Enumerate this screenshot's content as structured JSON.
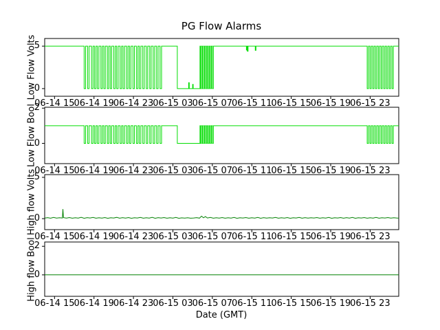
{
  "title": "PG Flow Alarms",
  "xlabel": "Date (GMT)",
  "xlim": [
    2.0,
    37.9
  ],
  "x_tick_values": [
    3,
    7,
    11,
    15,
    19,
    23,
    27,
    31,
    35
  ],
  "x_tick_labels": [
    "06-14 15",
    "06-14 19",
    "06-14 23",
    "06-15 03",
    "06-15 07",
    "06-15 11",
    "06-15 15",
    "06-15 19",
    "06-15 23"
  ],
  "colors": {
    "bright_green": "#00dd00",
    "dark_green": "#008000",
    "axis": "#000000",
    "background": "#ffffff"
  },
  "chart_data": [
    {
      "type": "line",
      "ylabel": "Low Flow Volts",
      "ylim": [
        -0.9,
        5.9
      ],
      "yticks": [
        0,
        5
      ],
      "series": [
        {
          "name": "low-flow-volts",
          "color": "#00dd00",
          "style": "pulse",
          "base": 5,
          "pulses": [
            [
              6.0,
              6.15,
              0
            ],
            [
              6.35,
              6.5,
              0
            ],
            [
              6.75,
              6.9,
              0
            ],
            [
              7.05,
              7.2,
              0
            ],
            [
              7.35,
              7.5,
              0
            ],
            [
              7.7,
              7.85,
              0
            ],
            [
              8.0,
              8.15,
              0
            ],
            [
              8.35,
              8.5,
              0
            ],
            [
              8.65,
              8.8,
              0
            ],
            [
              9.0,
              9.15,
              0
            ],
            [
              9.3,
              9.45,
              0
            ],
            [
              9.65,
              9.8,
              0
            ],
            [
              9.95,
              10.1,
              0
            ],
            [
              10.3,
              10.45,
              0
            ],
            [
              10.6,
              10.75,
              0
            ],
            [
              10.95,
              11.1,
              0
            ],
            [
              11.3,
              11.45,
              0
            ],
            [
              11.6,
              11.75,
              0
            ],
            [
              11.95,
              12.1,
              0
            ],
            [
              12.3,
              12.45,
              0
            ],
            [
              12.65,
              12.8,
              0
            ],
            [
              13.0,
              13.15,
              0
            ],
            [
              13.35,
              13.5,
              0
            ],
            [
              13.7,
              13.85,
              0
            ],
            [
              15.45,
              16.6,
              0
            ],
            [
              16.6,
              16.66,
              0.7
            ],
            [
              16.66,
              17.0,
              0
            ],
            [
              17.0,
              17.06,
              0.5
            ],
            [
              17.06,
              17.75,
              0
            ],
            [
              17.8,
              17.9,
              0
            ],
            [
              18.0,
              18.1,
              0
            ],
            [
              18.2,
              18.3,
              0
            ],
            [
              18.4,
              18.5,
              0
            ],
            [
              18.6,
              18.7,
              0
            ],
            [
              18.8,
              18.9,
              0
            ],
            [
              19.0,
              19.1,
              0
            ],
            [
              22.45,
              22.5,
              4.55
            ],
            [
              22.55,
              22.62,
              4.4
            ],
            [
              23.35,
              23.42,
              4.5
            ],
            [
              34.7,
              34.83,
              0
            ],
            [
              34.98,
              35.11,
              0
            ],
            [
              35.26,
              35.39,
              0
            ],
            [
              35.54,
              35.67,
              0
            ],
            [
              35.82,
              35.95,
              0
            ],
            [
              36.1,
              36.23,
              0
            ],
            [
              36.38,
              36.51,
              0
            ],
            [
              36.66,
              36.79,
              0
            ],
            [
              36.94,
              37.07,
              0
            ],
            [
              37.22,
              37.35,
              0
            ]
          ]
        }
      ]
    },
    {
      "type": "line",
      "ylabel": "Low Flow Bool",
      "ylim": [
        -1.15,
        2.05
      ],
      "yticks": [
        0,
        2
      ],
      "series": [
        {
          "name": "low-flow-bool",
          "color": "#00dd00",
          "style": "pulse",
          "base": 1,
          "pulses": [
            [
              6.0,
              6.15,
              0
            ],
            [
              6.35,
              6.5,
              0
            ],
            [
              6.75,
              6.9,
              0
            ],
            [
              7.05,
              7.2,
              0
            ],
            [
              7.35,
              7.5,
              0
            ],
            [
              7.7,
              7.85,
              0
            ],
            [
              8.0,
              8.15,
              0
            ],
            [
              8.35,
              8.5,
              0
            ],
            [
              8.65,
              8.8,
              0
            ],
            [
              9.0,
              9.15,
              0
            ],
            [
              9.3,
              9.45,
              0
            ],
            [
              9.65,
              9.8,
              0
            ],
            [
              9.95,
              10.1,
              0
            ],
            [
              10.3,
              10.45,
              0
            ],
            [
              10.6,
              10.75,
              0
            ],
            [
              10.95,
              11.1,
              0
            ],
            [
              11.3,
              11.45,
              0
            ],
            [
              11.6,
              11.75,
              0
            ],
            [
              11.95,
              12.1,
              0
            ],
            [
              12.3,
              12.45,
              0
            ],
            [
              12.65,
              12.8,
              0
            ],
            [
              13.0,
              13.15,
              0
            ],
            [
              13.35,
              13.5,
              0
            ],
            [
              13.7,
              13.85,
              0
            ],
            [
              15.45,
              17.75,
              0
            ],
            [
              17.8,
              17.9,
              0
            ],
            [
              18.0,
              18.1,
              0
            ],
            [
              18.2,
              18.3,
              0
            ],
            [
              18.4,
              18.5,
              0
            ],
            [
              18.6,
              18.7,
              0
            ],
            [
              18.8,
              18.9,
              0
            ],
            [
              19.0,
              19.1,
              0
            ],
            [
              34.7,
              34.83,
              0
            ],
            [
              34.98,
              35.11,
              0
            ],
            [
              35.26,
              35.39,
              0
            ],
            [
              35.54,
              35.67,
              0
            ],
            [
              35.82,
              35.95,
              0
            ],
            [
              36.1,
              36.23,
              0
            ],
            [
              36.38,
              36.51,
              0
            ],
            [
              36.66,
              36.79,
              0
            ],
            [
              36.94,
              37.07,
              0
            ],
            [
              37.22,
              37.35,
              0
            ]
          ]
        }
      ]
    },
    {
      "type": "line",
      "ylabel": "High flow Volts",
      "ylim": [
        -1.33,
        5.33
      ],
      "yticks": [
        0,
        5
      ],
      "series": [
        {
          "name": "high-flow-volts",
          "color": "#008000",
          "style": "points",
          "points": [
            [
              2.0,
              0.06
            ],
            [
              2.3,
              0.12
            ],
            [
              2.6,
              0.05
            ],
            [
              2.9,
              0.14
            ],
            [
              3.2,
              0.07
            ],
            [
              3.5,
              0.1
            ],
            [
              3.8,
              0.08
            ],
            [
              3.85,
              1.15
            ],
            [
              3.9,
              0.12
            ],
            [
              4.2,
              0.06
            ],
            [
              4.5,
              0.13
            ],
            [
              4.8,
              0.05
            ],
            [
              5.1,
              0.11
            ],
            [
              5.4,
              0.07
            ],
            [
              5.7,
              0.15
            ],
            [
              6.0,
              0.04
            ],
            [
              6.3,
              0.12
            ],
            [
              6.6,
              0.08
            ],
            [
              6.9,
              0.14
            ],
            [
              7.2,
              0.05
            ],
            [
              7.5,
              0.1
            ],
            [
              7.8,
              0.07
            ],
            [
              8.1,
              0.13
            ],
            [
              8.4,
              0.04
            ],
            [
              8.7,
              0.11
            ],
            [
              9.0,
              0.08
            ],
            [
              9.3,
              0.15
            ],
            [
              9.6,
              0.05
            ],
            [
              9.9,
              0.12
            ],
            [
              10.2,
              0.07
            ],
            [
              10.5,
              0.13
            ],
            [
              10.8,
              0.04
            ],
            [
              11.1,
              0.1
            ],
            [
              11.4,
              0.08
            ],
            [
              11.7,
              0.14
            ],
            [
              12.0,
              0.05
            ],
            [
              12.3,
              0.11
            ],
            [
              12.6,
              0.07
            ],
            [
              12.9,
              0.15
            ],
            [
              13.2,
              0.04
            ],
            [
              13.5,
              0.12
            ],
            [
              13.8,
              0.08
            ],
            [
              14.1,
              0.13
            ],
            [
              14.4,
              0.05
            ],
            [
              14.7,
              0.1
            ],
            [
              15.0,
              0.07
            ],
            [
              15.3,
              0.14
            ],
            [
              15.6,
              0.04
            ],
            [
              15.9,
              0.09
            ],
            [
              16.2,
              0.06
            ],
            [
              16.5,
              0.11
            ],
            [
              16.8,
              0.05
            ],
            [
              17.1,
              0.08
            ],
            [
              17.4,
              0.12
            ],
            [
              17.7,
              0.06
            ],
            [
              17.9,
              0.3
            ],
            [
              18.1,
              0.1
            ],
            [
              18.3,
              0.25
            ],
            [
              18.5,
              0.08
            ],
            [
              18.8,
              0.14
            ],
            [
              19.1,
              0.05
            ],
            [
              19.4,
              0.11
            ],
            [
              19.7,
              0.07
            ],
            [
              20.0,
              0.13
            ],
            [
              20.3,
              0.05
            ],
            [
              20.6,
              0.1
            ],
            [
              20.9,
              0.07
            ],
            [
              21.2,
              0.14
            ],
            [
              21.5,
              0.04
            ],
            [
              21.8,
              0.11
            ],
            [
              22.1,
              0.08
            ],
            [
              22.4,
              0.13
            ],
            [
              22.7,
              0.05
            ],
            [
              23.0,
              0.1
            ],
            [
              23.3,
              0.07
            ],
            [
              23.6,
              0.14
            ],
            [
              23.9,
              0.04
            ],
            [
              24.2,
              0.12
            ],
            [
              24.5,
              0.06
            ],
            [
              24.8,
              0.11
            ],
            [
              25.1,
              0.08
            ],
            [
              25.4,
              0.14
            ],
            [
              25.7,
              0.05
            ],
            [
              26.0,
              0.1
            ],
            [
              26.3,
              0.07
            ],
            [
              26.6,
              0.13
            ],
            [
              26.9,
              0.04
            ],
            [
              27.2,
              0.11
            ],
            [
              27.5,
              0.08
            ],
            [
              27.8,
              0.14
            ],
            [
              28.1,
              0.05
            ],
            [
              28.4,
              0.12
            ],
            [
              28.7,
              0.06
            ],
            [
              29.0,
              0.1
            ],
            [
              29.3,
              0.08
            ],
            [
              29.6,
              0.13
            ],
            [
              29.9,
              0.05
            ],
            [
              30.2,
              0.11
            ],
            [
              30.5,
              0.07
            ],
            [
              30.8,
              0.14
            ],
            [
              31.1,
              0.04
            ],
            [
              31.4,
              0.1
            ],
            [
              31.7,
              0.08
            ],
            [
              32.0,
              0.13
            ],
            [
              32.3,
              0.05
            ],
            [
              32.6,
              0.12
            ],
            [
              32.9,
              0.07
            ],
            [
              33.2,
              0.14
            ],
            [
              33.5,
              0.04
            ],
            [
              33.8,
              0.1
            ],
            [
              34.1,
              0.08
            ],
            [
              34.4,
              0.13
            ],
            [
              34.7,
              0.05
            ],
            [
              35.0,
              0.11
            ],
            [
              35.3,
              0.07
            ],
            [
              35.6,
              0.14
            ],
            [
              35.9,
              0.05
            ],
            [
              36.2,
              0.1
            ],
            [
              36.5,
              0.08
            ],
            [
              36.8,
              0.13
            ],
            [
              37.1,
              0.06
            ],
            [
              37.4,
              0.11
            ],
            [
              37.7,
              0.08
            ],
            [
              37.9,
              0.06
            ]
          ]
        }
      ]
    },
    {
      "type": "line",
      "ylabel": "High flow Bool",
      "ylim": [
        -1.5,
        2.3
      ],
      "yticks": [
        0,
        2
      ],
      "series": [
        {
          "name": "high-flow-bool",
          "color": "#008000",
          "style": "points",
          "points": [
            [
              2.0,
              0
            ],
            [
              37.9,
              0
            ]
          ]
        }
      ]
    }
  ]
}
